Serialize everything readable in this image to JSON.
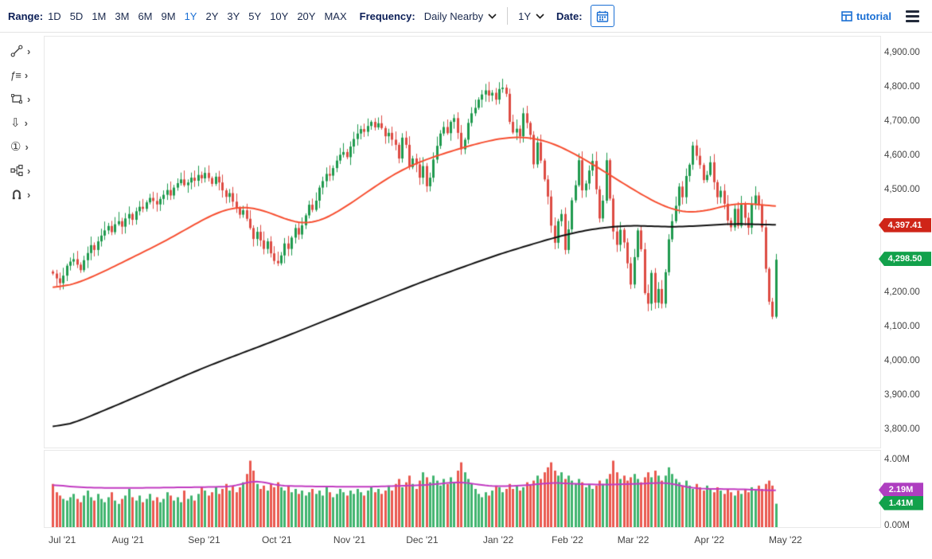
{
  "toolbar": {
    "range_label": "Range:",
    "range_options": [
      "1D",
      "5D",
      "1M",
      "3M",
      "6M",
      "9M",
      "1Y",
      "2Y",
      "3Y",
      "5Y",
      "10Y",
      "20Y",
      "MAX"
    ],
    "range_selected": "1Y",
    "frequency_label": "Frequency:",
    "frequency_value": "Daily Nearby",
    "period_value": "1Y",
    "date_label": "Date:",
    "tutorial_label": "tutorial"
  },
  "sidebar": {
    "chevron": "›",
    "tools": [
      {
        "name": "annotation-line-tool"
      },
      {
        "name": "studies-indicator-tool",
        "glyph": "ƒ≡"
      },
      {
        "name": "shapes-tool"
      },
      {
        "name": "arrow-marker-tool",
        "glyph": "⇩"
      },
      {
        "name": "number-annotation-tool",
        "glyph": "①"
      },
      {
        "name": "connector-flow-tool"
      },
      {
        "name": "magnet-snap-tool"
      }
    ]
  },
  "colors": {
    "accent_blue": "#1a6fd4",
    "navy_text": "#0c1f57",
    "candle_up": "#1f9a4e",
    "candle_down": "#dd4b43",
    "vol_up": "#41b46f",
    "vol_down": "#ea5a50",
    "ma_red": "#f64e30",
    "ma_black": "#111111",
    "vol_ma_purple": "#c13ac1",
    "badge_red": "#cf2518",
    "badge_green": "#12a14b",
    "badge_purple": "#ae3ec0"
  },
  "chart_data": {
    "type": "candlestick",
    "title": "",
    "xlabel": "",
    "ylabel": "",
    "grid": false,
    "legend": false,
    "price_range": [
      3750,
      4950
    ],
    "volume_range": [
      0,
      4.6
    ],
    "y_ticks": [
      {
        "label": "4,900.00",
        "value": 4900
      },
      {
        "label": "4,800.00",
        "value": 4800
      },
      {
        "label": "4,700.00",
        "value": 4700
      },
      {
        "label": "4,600.00",
        "value": 4600
      },
      {
        "label": "4,500.00",
        "value": 4500
      },
      {
        "label": "4,400.00",
        "value": 4400
      },
      {
        "label": "4,300.00",
        "value": 4300
      },
      {
        "label": "4,200.00",
        "value": 4200
      },
      {
        "label": "4,100.00",
        "value": 4100
      },
      {
        "label": "4,000.00",
        "value": 4000
      },
      {
        "label": "3,900.00",
        "value": 3900
      },
      {
        "label": "3,800.00",
        "value": 3800
      }
    ],
    "volume_ticks": [
      {
        "label": "4.00M",
        "value": 4.0
      },
      {
        "label": "0.00M",
        "value": 0.0
      }
    ],
    "x_ticks": [
      {
        "label": "Jul '21",
        "index": 3
      },
      {
        "label": "Aug '21",
        "index": 22
      },
      {
        "label": "Sep '21",
        "index": 44
      },
      {
        "label": "Oct '21",
        "index": 65
      },
      {
        "label": "Nov '21",
        "index": 86
      },
      {
        "label": "Dec '21",
        "index": 107
      },
      {
        "label": "Jan '22",
        "index": 129
      },
      {
        "label": "Feb '22",
        "index": 149
      },
      {
        "label": "Mar '22",
        "index": 168
      },
      {
        "label": "Apr '22",
        "index": 190
      },
      {
        "label": "May '22",
        "index": 212
      }
    ],
    "closes": [
      4258,
      4244,
      4230,
      4252,
      4281,
      4293,
      4300,
      4284,
      4268,
      4297,
      4318,
      4341,
      4327,
      4352,
      4369,
      4384,
      4397,
      4379,
      4402,
      4411,
      4395,
      4419,
      4432,
      4415,
      4440,
      4453,
      4447,
      4466,
      4479,
      4470,
      4460,
      4476,
      4488,
      4502,
      4486,
      4509,
      4522,
      4533,
      4516,
      4524,
      4538,
      4529,
      4546,
      4536,
      4552,
      4537,
      4520,
      4541,
      4524,
      4501,
      4482,
      4493,
      4468,
      4448,
      4430,
      4443,
      4418,
      4391,
      4359,
      4380,
      4355,
      4330,
      4352,
      4317,
      4295,
      4288,
      4311,
      4346,
      4330,
      4363,
      4391,
      4372,
      4399,
      4428,
      4459,
      4444,
      4471,
      4509,
      4528,
      4549,
      4544,
      4566,
      4588,
      4605,
      4613,
      4598,
      4629,
      4651,
      4667,
      4680,
      4672,
      4689,
      4701,
      4685,
      4697,
      4683,
      4659,
      4669,
      4649,
      4634,
      4594,
      4655,
      4634,
      4569,
      4594,
      4577,
      4538,
      4572,
      4513,
      4538,
      4591,
      4631,
      4667,
      4686,
      4668,
      4701,
      4712,
      4669,
      4621,
      4649,
      4698,
      4726,
      4742,
      4766,
      4781,
      4793,
      4778,
      4786,
      4766,
      4797,
      4801,
      4783,
      4701,
      4670,
      4681,
      4659,
      4726,
      4698,
      4663,
      4577,
      4641,
      4588,
      4533,
      4483,
      4398,
      4348,
      4411,
      4432,
      4327,
      4387,
      4472,
      4516,
      4589,
      4501,
      4521,
      4559,
      4587,
      4504,
      4419,
      4471,
      4589,
      4477,
      4381,
      4342,
      4386,
      4349,
      4288,
      4226,
      4306,
      4384,
      4329,
      4201,
      4170,
      4260,
      4173,
      4213,
      4170,
      4262,
      4358,
      4411,
      4456,
      4512,
      4481,
      4543,
      4576,
      4632,
      4602,
      4575,
      4531,
      4546,
      4583,
      4525,
      4481,
      4500,
      4462,
      4413,
      4393,
      4447,
      4397,
      4459,
      4421,
      4392,
      4462,
      4486,
      4459,
      4393,
      4272,
      4176,
      4132,
      4298.5
    ],
    "volumes": [
      2.6,
      2.1,
      1.9,
      1.7,
      1.6,
      1.8,
      2.0,
      1.7,
      1.5,
      1.9,
      2.2,
      1.8,
      1.6,
      2.0,
      1.7,
      1.5,
      1.8,
      2.1,
      1.6,
      1.4,
      1.7,
      1.9,
      2.3,
      1.8,
      1.6,
      1.9,
      1.5,
      1.7,
      2.0,
      1.6,
      1.8,
      1.5,
      1.7,
      2.1,
      1.9,
      1.6,
      1.8,
      1.5,
      2.2,
      1.7,
      1.9,
      1.6,
      2.0,
      2.4,
      2.2,
      1.9,
      2.1,
      2.4,
      2.0,
      2.3,
      2.6,
      2.2,
      2.5,
      2.1,
      2.4,
      2.7,
      3.2,
      4.0,
      3.4,
      2.6,
      2.3,
      2.5,
      2.2,
      2.6,
      2.4,
      2.7,
      2.4,
      2.2,
      2.5,
      2.1,
      2.3,
      2.0,
      2.2,
      1.9,
      2.1,
      2.3,
      2.0,
      2.2,
      1.9,
      2.4,
      2.1,
      1.8,
      2.0,
      2.3,
      2.1,
      1.9,
      2.2,
      2.0,
      2.3,
      2.1,
      1.9,
      2.2,
      2.4,
      2.1,
      2.3,
      2.0,
      2.2,
      2.5,
      2.2,
      2.6,
      2.9,
      2.4,
      2.7,
      3.1,
      2.6,
      2.3,
      2.8,
      3.3,
      3.0,
      2.7,
      3.1,
      2.8,
      2.5,
      2.9,
      2.6,
      3.0,
      2.7,
      3.4,
      3.9,
      3.3,
      2.9,
      2.6,
      2.3,
      2.0,
      1.8,
      2.1,
      1.9,
      2.2,
      2.5,
      2.4,
      2.1,
      2.3,
      2.6,
      2.3,
      2.5,
      2.2,
      2.4,
      2.7,
      2.5,
      2.8,
      3.1,
      2.9,
      3.3,
      3.6,
      3.9,
      3.4,
      3.1,
      3.3,
      2.9,
      3.1,
      2.8,
      2.6,
      2.9,
      2.7,
      2.4,
      2.6,
      2.3,
      2.5,
      2.8,
      2.6,
      2.9,
      3.2,
      4.0,
      3.3,
      2.9,
      3.1,
      2.8,
      3.0,
      3.2,
      2.9,
      2.7,
      3.0,
      3.3,
      3.0,
      3.4,
      3.1,
      2.8,
      3.1,
      3.6,
      3.2,
      2.9,
      2.7,
      2.5,
      2.8,
      2.5,
      2.3,
      2.6,
      2.4,
      2.2,
      2.5,
      2.3,
      2.1,
      2.4,
      2.2,
      2.0,
      2.3,
      2.1,
      1.9,
      2.2,
      2.0,
      2.3,
      2.1,
      2.4,
      2.2,
      2.5,
      2.3,
      2.6,
      2.8,
      2.5,
      1.41
    ],
    "ma_red": [
      [
        0,
        4205
      ],
      [
        10,
        4240
      ],
      [
        22,
        4300
      ],
      [
        34,
        4360
      ],
      [
        44,
        4420
      ],
      [
        50,
        4450
      ],
      [
        56,
        4460
      ],
      [
        65,
        4430
      ],
      [
        72,
        4390
      ],
      [
        80,
        4420
      ],
      [
        90,
        4490
      ],
      [
        100,
        4560
      ],
      [
        110,
        4600
      ],
      [
        120,
        4630
      ],
      [
        129,
        4655
      ],
      [
        138,
        4660
      ],
      [
        145,
        4640
      ],
      [
        155,
        4585
      ],
      [
        165,
        4520
      ],
      [
        175,
        4460
      ],
      [
        182,
        4430
      ],
      [
        190,
        4440
      ],
      [
        196,
        4465
      ],
      [
        202,
        4470
      ],
      [
        209,
        4440
      ]
    ],
    "ma_black": [
      [
        0,
        3796
      ],
      [
        20,
        3880
      ],
      [
        44,
        3985
      ],
      [
        65,
        4065
      ],
      [
        86,
        4150
      ],
      [
        107,
        4235
      ],
      [
        129,
        4315
      ],
      [
        149,
        4375
      ],
      [
        160,
        4395
      ],
      [
        170,
        4400
      ],
      [
        178,
        4392
      ],
      [
        190,
        4400
      ],
      [
        200,
        4405
      ],
      [
        209,
        4397.41
      ]
    ],
    "volume_ma_purple": [
      [
        0,
        2.65
      ],
      [
        3,
        2.45
      ],
      [
        10,
        2.38
      ],
      [
        20,
        2.35
      ],
      [
        40,
        2.4
      ],
      [
        55,
        2.45
      ],
      [
        57,
        2.95
      ],
      [
        60,
        2.85
      ],
      [
        63,
        2.5
      ],
      [
        75,
        2.45
      ],
      [
        90,
        2.42
      ],
      [
        100,
        2.48
      ],
      [
        110,
        2.55
      ],
      [
        117,
        2.75
      ],
      [
        120,
        2.72
      ],
      [
        123,
        2.5
      ],
      [
        130,
        2.45
      ],
      [
        140,
        2.55
      ],
      [
        144,
        2.72
      ],
      [
        150,
        2.6
      ],
      [
        160,
        2.55
      ],
      [
        168,
        2.6
      ],
      [
        175,
        2.65
      ],
      [
        178,
        2.75
      ],
      [
        180,
        2.6
      ],
      [
        183,
        2.35
      ],
      [
        190,
        2.3
      ],
      [
        200,
        2.28
      ],
      [
        209,
        2.19
      ]
    ],
    "badges": {
      "price": [
        {
          "label": "4,397.41",
          "value": 4397.41,
          "color": "#cf2518"
        },
        {
          "label": "4,298.50",
          "value": 4298.5,
          "color": "#12a14b"
        }
      ],
      "volume": [
        {
          "label": "2.19M",
          "value": 2.19,
          "color": "#ae3ec0"
        },
        {
          "label": "1.41M",
          "value": 1.41,
          "color": "#12a14b"
        }
      ]
    }
  }
}
